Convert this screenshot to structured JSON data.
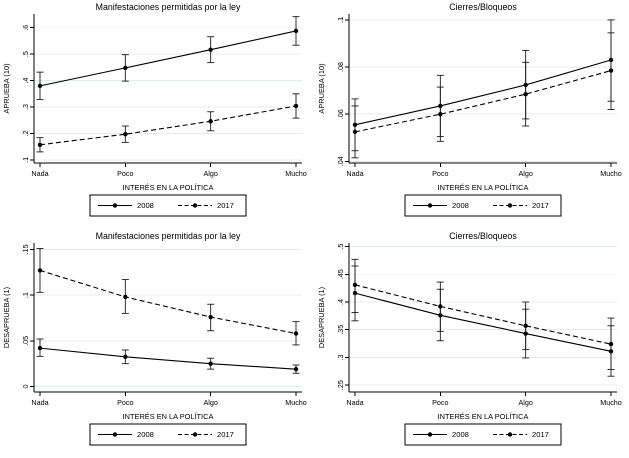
{
  "figure": {
    "background": "#ffffff",
    "text_color": "#000000",
    "grid_color": "#e3edf0",
    "axis_color": "#000000",
    "errorbar_color": "#1a1a1a"
  },
  "chart_data": [
    {
      "id": "aprueba-manifestaciones",
      "position": "top-left",
      "type": "line",
      "title": "Manifestaciones permitidas por la ley",
      "xlabel": "INTERÉS EN LA POLÍTICA",
      "ylabel": "APRUEBA (10)",
      "categories": [
        "Nada",
        "Poco",
        "Algo",
        "Mucho"
      ],
      "ylim": [
        0.088,
        0.652
      ],
      "yticks": [
        0.1,
        0.2,
        0.3,
        0.4,
        0.5,
        0.6
      ],
      "ytick_labels": [
        ".1",
        ".2",
        ".3",
        ".4",
        ".5",
        ".6"
      ],
      "grid": true,
      "legend_position": "bottom",
      "legend": [
        "2008",
        "2017"
      ],
      "series": [
        {
          "name": "2008",
          "line_style": "solid",
          "marker": "circle",
          "values": [
            0.38,
            0.448,
            0.517,
            0.588
          ],
          "ci_low": [
            0.328,
            0.398,
            0.468,
            0.534
          ],
          "ci_high": [
            0.432,
            0.498,
            0.566,
            0.642
          ]
        },
        {
          "name": "2017",
          "line_style": "dashed",
          "marker": "circle",
          "values": [
            0.157,
            0.197,
            0.246,
            0.304
          ],
          "ci_low": [
            0.13,
            0.166,
            0.21,
            0.258
          ],
          "ci_high": [
            0.184,
            0.228,
            0.282,
            0.35
          ]
        }
      ]
    },
    {
      "id": "aprueba-cierres",
      "position": "top-right",
      "type": "line",
      "title": "Cierres/Bloqueos",
      "xlabel": "INTERÉS EN LA POLÍTICA",
      "ylabel": "APRUEBA (10)",
      "categories": [
        "Nada",
        "Poco",
        "Algo",
        "Mucho"
      ],
      "ylim": [
        0.0393,
        0.1025
      ],
      "yticks": [
        0.04,
        0.06,
        0.08,
        0.1
      ],
      "ytick_labels": [
        ".04",
        ".06",
        ".08",
        ".1"
      ],
      "grid": true,
      "legend_position": "bottom",
      "legend": [
        "2008",
        "2017"
      ],
      "series": [
        {
          "name": "2008",
          "line_style": "solid",
          "marker": "circle",
          "values": [
            0.0555,
            0.0635,
            0.0724,
            0.083
          ],
          "ci_low": [
            0.0445,
            0.0505,
            0.058,
            0.0655
          ],
          "ci_high": [
            0.0665,
            0.0765,
            0.087,
            0.1
          ]
        },
        {
          "name": "2017",
          "line_style": "dashed",
          "marker": "circle",
          "values": [
            0.0525,
            0.06,
            0.0685,
            0.0785
          ],
          "ci_low": [
            0.0415,
            0.0485,
            0.055,
            0.062
          ],
          "ci_high": [
            0.0635,
            0.0715,
            0.082,
            0.0945
          ]
        }
      ]
    },
    {
      "id": "desaprueba-manifestaciones",
      "position": "bottom-left",
      "type": "line",
      "title": "Manifestaciones permitidas por la ley",
      "xlabel": "INTERÉS EN LA POLÍTICA",
      "ylabel": "DESAPRUEBA (1)",
      "categories": [
        "Nada",
        "Poco",
        "Algo",
        "Mucho"
      ],
      "ylim": [
        -0.006,
        0.157
      ],
      "yticks": [
        0,
        0.05,
        0.1,
        0.15
      ],
      "ytick_labels": [
        "0",
        ".05",
        ".1",
        ".15"
      ],
      "grid": true,
      "legend_position": "bottom",
      "legend": [
        "2008",
        "2017"
      ],
      "series": [
        {
          "name": "2008",
          "line_style": "solid",
          "marker": "circle",
          "values": [
            0.042,
            0.0325,
            0.025,
            0.019
          ],
          "ci_low": [
            0.033,
            0.025,
            0.019,
            0.0145
          ],
          "ci_high": [
            0.052,
            0.04,
            0.031,
            0.0235
          ]
        },
        {
          "name": "2017",
          "line_style": "dashed",
          "marker": "circle",
          "values": [
            0.127,
            0.098,
            0.076,
            0.058
          ],
          "ci_low": [
            0.103,
            0.08,
            0.061,
            0.0455
          ],
          "ci_high": [
            0.151,
            0.117,
            0.09,
            0.071
          ]
        }
      ]
    },
    {
      "id": "desaprueba-cierres",
      "position": "bottom-right",
      "type": "line",
      "title": "Cierres/Bloqueos",
      "xlabel": "INTERÉS EN LA POLÍTICA",
      "ylabel": "DESAPRUEBA (1)",
      "categories": [
        "Nada",
        "Poco",
        "Algo",
        "Mucho"
      ],
      "ylim": [
        0.2375,
        0.5065
      ],
      "yticks": [
        0.25,
        0.3,
        0.35,
        0.4,
        0.45,
        0.5
      ],
      "ytick_labels": [
        ".25",
        ".3",
        ".35",
        ".4",
        ".45",
        ".5"
      ],
      "grid": true,
      "legend_position": "bottom",
      "legend": [
        "2008",
        "2017"
      ],
      "series": [
        {
          "name": "2008",
          "line_style": "solid",
          "marker": "circle",
          "values": [
            0.416,
            0.376,
            0.343,
            0.311
          ],
          "ci_low": [
            0.366,
            0.33,
            0.299,
            0.266
          ],
          "ci_high": [
            0.465,
            0.423,
            0.387,
            0.357
          ]
        },
        {
          "name": "2017",
          "line_style": "dashed",
          "marker": "circle",
          "values": [
            0.431,
            0.392,
            0.357,
            0.324
          ],
          "ci_low": [
            0.381,
            0.347,
            0.314,
            0.278
          ],
          "ci_high": [
            0.477,
            0.436,
            0.4,
            0.371
          ]
        }
      ]
    }
  ]
}
